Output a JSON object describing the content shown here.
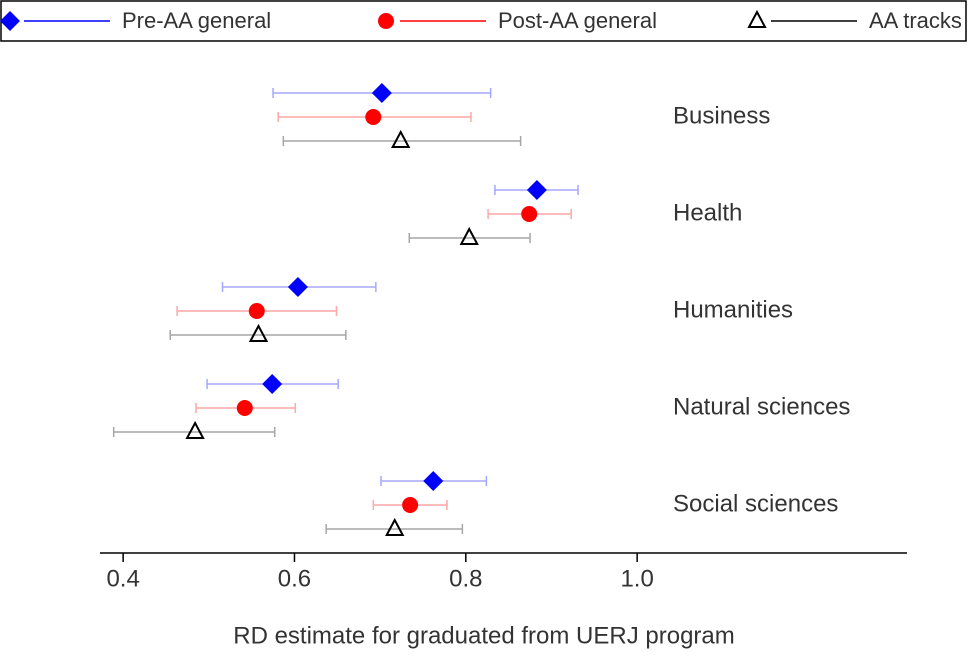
{
  "chart_data": {
    "type": "errorbar",
    "x_label": "RD estimate for graduated from UERJ program",
    "categories": [
      "Business",
      "Health",
      "Humanities",
      "Natural sciences",
      "Social sciences"
    ],
    "series": [
      {
        "name": "Pre-AA general",
        "color": "#0000ff",
        "marker": "diamond",
        "values": [
          0.702,
          0.883,
          0.604,
          0.574,
          0.762
        ],
        "lower": [
          0.575,
          0.834,
          0.516,
          0.498,
          0.701
        ],
        "upper": [
          0.829,
          0.931,
          0.695,
          0.651,
          0.824
        ]
      },
      {
        "name": "Post-AA general",
        "color": "#ff0000",
        "marker": "circle",
        "values": [
          0.692,
          0.874,
          0.556,
          0.542,
          0.735
        ],
        "lower": [
          0.581,
          0.826,
          0.463,
          0.485,
          0.692
        ],
        "upper": [
          0.806,
          0.923,
          0.649,
          0.601,
          0.778
        ]
      },
      {
        "name": "AA tracks",
        "color": "#000000",
        "marker": "triangle",
        "values": [
          0.724,
          0.804,
          0.558,
          0.484,
          0.717
        ],
        "lower": [
          0.587,
          0.734,
          0.455,
          0.389,
          0.637
        ],
        "upper": [
          0.864,
          0.875,
          0.66,
          0.577,
          0.796
        ]
      }
    ],
    "xlim": [
      0.373,
      1.315
    ],
    "xticks": [
      0.4,
      0.6,
      0.8,
      {
        "value": 1,
        "label": "1.0"
      }
    ],
    "legend": "top"
  }
}
